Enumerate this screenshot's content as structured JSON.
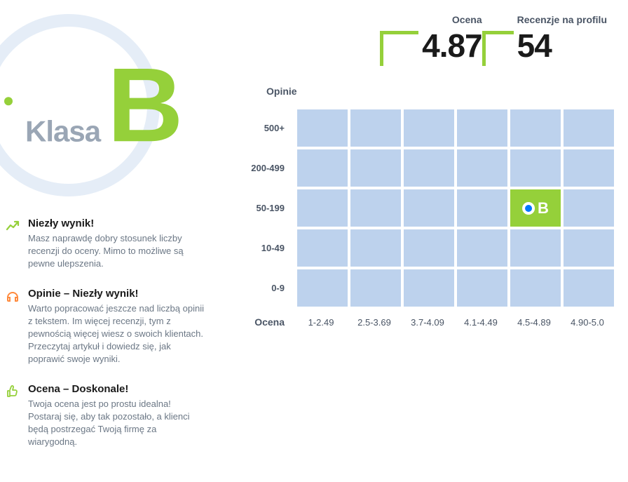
{
  "badge": {
    "klasa_label": "Klasa",
    "grade": "B",
    "grade_color": "#95d03a",
    "label_color": "#9aa6b5",
    "circle_color": "#e5edf7"
  },
  "stats": {
    "ocena_label": "Ocena",
    "ocena_value": "4.87",
    "recenzje_label": "Recenzje na profilu",
    "recenzje_value": "54",
    "bracket_color": "#95d03a"
  },
  "feedback": [
    {
      "icon": "trend-up",
      "icon_color": "#95d03a",
      "title": "Niezły wynik!",
      "desc": "Masz naprawdę dobry stosunek liczby recenzji do oceny. Mimo to możliwe są pewne ulepszenia."
    },
    {
      "icon": "headphones",
      "icon_color": "#ff8a3d",
      "title": "Opinie – Niezły wynik!",
      "desc": "Warto popracować jeszcze nad liczbą opinii z tekstem. Im więcej recenzji, tym z pewnością więcej wiesz o swoich klientach. Przeczytaj artykuł i dowiedz się, jak poprawić swoje wyniki."
    },
    {
      "icon": "thumbs-up",
      "icon_color": "#95d03a",
      "title": "Ocena – Doskonale!",
      "desc": "Twoja ocena jest po prostu idealna! Postaraj się, aby tak pozostało, a klienci będą postrzegać Twoją firmę za wiarygodną."
    }
  ],
  "heatmap": {
    "opinie_label": "Opinie",
    "ocena_label": "Ocena",
    "y_labels": [
      "500+",
      "200-499",
      "50-199",
      "10-49",
      "0-9"
    ],
    "x_labels": [
      "1-2.49",
      "2.5-3.69",
      "3.7-4.09",
      "4.1-4.49",
      "4.5-4.89",
      "4.90-5.0"
    ],
    "cell_color": "#bdd2ed",
    "highlight_color": "#95d03a",
    "highlight_row": 2,
    "highlight_col": 4,
    "highlight_letter": "B",
    "marker_outer": "#ffffff",
    "marker_inner": "#0077ff"
  }
}
